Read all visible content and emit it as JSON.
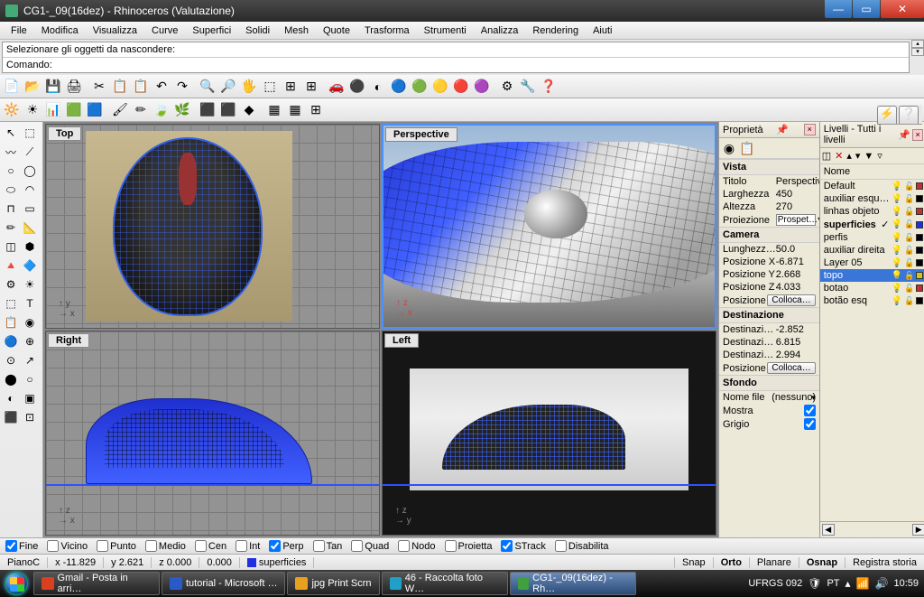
{
  "window": {
    "title": "CG1-_09(16dez) - Rhinoceros (Valutazione)"
  },
  "menu": [
    "File",
    "Modifica",
    "Visualizza",
    "Curve",
    "Superfici",
    "Solidi",
    "Mesh",
    "Quote",
    "Trasforma",
    "Strumenti",
    "Analizza",
    "Rendering",
    "Aiuti"
  ],
  "cmd": {
    "history": "Selezionare gli oggetti da nascondere:",
    "prompt": "Comando:"
  },
  "viewports": {
    "top": {
      "label": "Top",
      "ax1": "x",
      "ax2": "y"
    },
    "persp": {
      "label": "Perspective",
      "ax1": "x",
      "ax2": "z"
    },
    "right": {
      "label": "Right",
      "ax1": "x",
      "ax2": "z"
    },
    "left": {
      "label": "Left",
      "ax1": "y",
      "ax2": "z"
    }
  },
  "props": {
    "title": "Proprietà",
    "sec_vista": "Vista",
    "titolo_k": "Titolo",
    "titolo_v": "Perspective",
    "larg_k": "Larghezza",
    "larg_v": "450",
    "alt_k": "Altezza",
    "alt_v": "270",
    "proj_k": "Proiezione",
    "proj_v": "Prospet…",
    "sec_cam": "Camera",
    "lung_k": "Lunghezz…",
    "lung_v": "50.0",
    "px_k": "Posizione X",
    "px_v": "-6.871",
    "py_k": "Posizione Y",
    "py_v": "2.668",
    "pz_k": "Posizione Z",
    "pz_v": "4.033",
    "pos_k": "Posizione",
    "pos_btn": "Colloca…",
    "sec_dest": "Destinazione",
    "dx_k": "Destinazi…",
    "dx_v": "-2.852",
    "dy_k": "Destinazi…",
    "dy_v": "6.815",
    "dz_k": "Destinazi…",
    "dz_v": "2.994",
    "sec_sfondo": "Sfondo",
    "nf_k": "Nome file",
    "nf_v": "(nessuno)",
    "mostra_k": "Mostra",
    "grigio_k": "Grigio"
  },
  "layers": {
    "title": "Livelli - Tutti i livelli",
    "col": "Nome",
    "items": [
      {
        "name": "Default",
        "color": "#c03030"
      },
      {
        "name": "auxiliar esqu…",
        "color": "#000000"
      },
      {
        "name": "linhas objeto",
        "color": "#c03030"
      },
      {
        "name": "superficies",
        "color": "#2030e0",
        "current": true
      },
      {
        "name": "perfis",
        "color": "#000000"
      },
      {
        "name": "auxiliar direita",
        "color": "#000000"
      },
      {
        "name": "Layer 05",
        "color": "#000000"
      },
      {
        "name": "topo",
        "color": "#c8c820",
        "selected": true
      },
      {
        "name": "botao",
        "color": "#c03030"
      },
      {
        "name": "botão esq",
        "color": "#000000"
      }
    ]
  },
  "osnap": {
    "items": [
      {
        "label": "Fine",
        "on": true
      },
      {
        "label": "Vicino",
        "on": false
      },
      {
        "label": "Punto",
        "on": false
      },
      {
        "label": "Medio",
        "on": false
      },
      {
        "label": "Cen",
        "on": false
      },
      {
        "label": "Int",
        "on": false
      },
      {
        "label": "Perp",
        "on": true
      },
      {
        "label": "Tan",
        "on": false
      },
      {
        "label": "Quad",
        "on": false
      },
      {
        "label": "Nodo",
        "on": false
      },
      {
        "label": "Proietta",
        "on": false
      },
      {
        "label": "STrack",
        "on": true
      },
      {
        "label": "Disabilita",
        "on": false
      }
    ]
  },
  "status": {
    "plane": "PianoC",
    "x": "x -11.829",
    "y": "y 2.621",
    "z": "z 0.000",
    "extra": "0.000",
    "layer": "superficies",
    "buttons": [
      "Snap",
      "Orto",
      "Planare",
      "Osnap",
      "Registra storia"
    ]
  },
  "taskbar": {
    "items": [
      {
        "label": "Gmail - Posta in arri…",
        "color": "#d84020"
      },
      {
        "label": "tutorial - Microsoft …",
        "color": "#2a5aca"
      },
      {
        "label": "jpg Print Scrn",
        "color": "#e8a020"
      },
      {
        "label": "46 - Raccolta foto W…",
        "color": "#20a0c8"
      },
      {
        "label": "CG1-_09(16dez) - Rh…",
        "color": "#40a040",
        "active": true
      }
    ],
    "net": "UFRGS 092",
    "lang": "PT",
    "clock": "10:59"
  },
  "toolbar1": [
    "📄",
    "📂",
    "💾",
    "🖨",
    "",
    "✂",
    "📋",
    "📋",
    "↶",
    "↷",
    "",
    "🔍",
    "🔎",
    "🖐",
    "⬚",
    "⊞",
    "⊞",
    "",
    "🚗",
    "⚫",
    "◐",
    "🔵",
    "🟢",
    "🟡",
    "🔴",
    "🟣",
    "",
    "⚙",
    "🔧",
    "❓"
  ],
  "toolbar2": [
    "🔆",
    "☀",
    "📊",
    "🟩",
    "🟦",
    "",
    "🖌",
    "✏",
    "🍃",
    "🌿",
    "",
    "⬛",
    "⬛",
    "◆",
    "",
    "▦",
    "▦",
    "⊞"
  ],
  "toolbox": [
    "↖",
    "⬚",
    "〰",
    "⟋",
    "○",
    "◯",
    "⬭",
    "◠",
    "⊓",
    "▭",
    "✏",
    "📐",
    "◫",
    "⬢",
    "🔺",
    "🔷",
    "⚙",
    "☀",
    "⬚",
    "T",
    "📋",
    "◉",
    "🔵",
    "⊕",
    "⊙",
    "↗",
    "⬤",
    "○",
    "◐",
    "▣",
    "⬛",
    "⊡"
  ]
}
